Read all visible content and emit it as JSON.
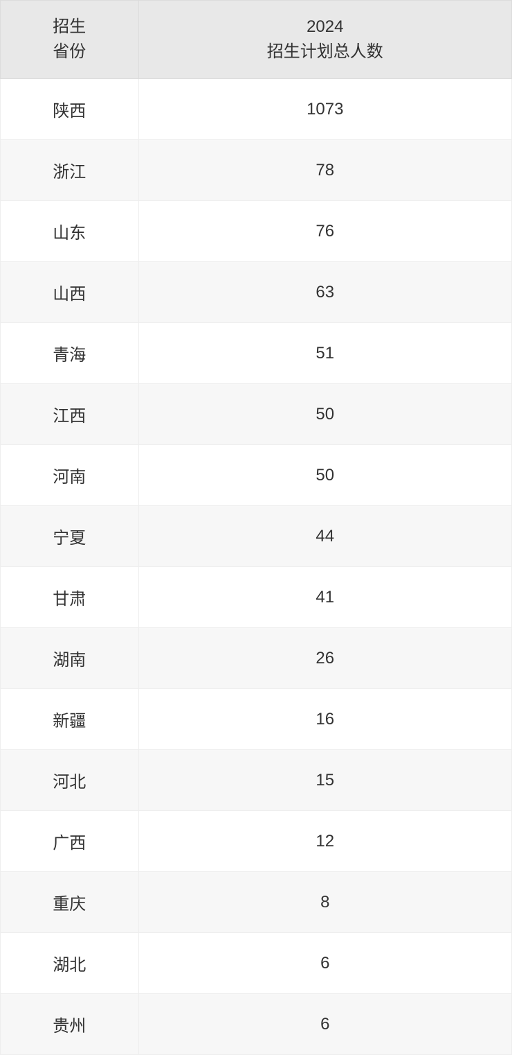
{
  "table": {
    "header": {
      "col1_line1": "招生",
      "col1_line2": "省份",
      "col2_line1": "2024",
      "col2_line2": "招生计划总人数"
    },
    "rows": [
      {
        "province": "陕西",
        "count": "1073"
      },
      {
        "province": "浙江",
        "count": "78"
      },
      {
        "province": "山东",
        "count": "76"
      },
      {
        "province": "山西",
        "count": "63"
      },
      {
        "province": "青海",
        "count": "51"
      },
      {
        "province": "江西",
        "count": "50"
      },
      {
        "province": "河南",
        "count": "50"
      },
      {
        "province": "宁夏",
        "count": "44"
      },
      {
        "province": "甘肃",
        "count": "41"
      },
      {
        "province": "湖南",
        "count": "26"
      },
      {
        "province": "新疆",
        "count": "16"
      },
      {
        "province": "河北",
        "count": "15"
      },
      {
        "province": "广西",
        "count": "12"
      },
      {
        "province": "重庆",
        "count": "8"
      },
      {
        "province": "湖北",
        "count": "6"
      },
      {
        "province": "贵州",
        "count": "6"
      }
    ],
    "styling": {
      "header_bg": "#e8e8e8",
      "header_border": "#dcdcdc",
      "row_odd_bg": "#ffffff",
      "row_even_bg": "#f7f7f7",
      "cell_border": "#eeeeee",
      "text_color": "#333333",
      "font_size": 24,
      "col1_width_pct": 27,
      "col2_width_pct": 73
    }
  }
}
